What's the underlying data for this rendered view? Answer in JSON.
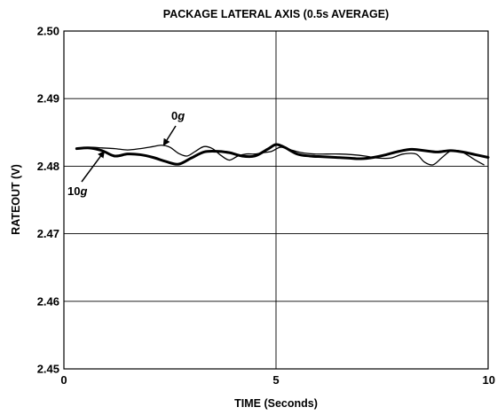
{
  "chart_data": {
    "type": "line",
    "title": "PACKAGE LATERAL AXIS (0.5s AVERAGE)",
    "xlabel": "TIME (Seconds)",
    "ylabel": "RATEOUT (V)",
    "xlim": [
      0,
      10
    ],
    "ylim": [
      2.45,
      2.5
    ],
    "xticks": [
      "0",
      "5",
      "10"
    ],
    "yticks": [
      "2.45",
      "2.46",
      "2.47",
      "2.48",
      "2.49",
      "2.50"
    ],
    "grid": true,
    "series": [
      {
        "name": "0g",
        "x": [
          0.3,
          0.6,
          0.9,
          1.2,
          1.5,
          1.8,
          2.1,
          2.3,
          2.5,
          2.7,
          2.9,
          3.1,
          3.3,
          3.5,
          3.7,
          3.9,
          4.1,
          4.3,
          4.5,
          4.7,
          4.9,
          5.1,
          5.3,
          5.6,
          5.9,
          6.2,
          6.5,
          6.8,
          7.1,
          7.4,
          7.7,
          8.0,
          8.3,
          8.5,
          8.7,
          8.9,
          9.1,
          9.3,
          9.5,
          9.7,
          9.9
        ],
        "values": [
          2.4826,
          2.4828,
          2.4827,
          2.4826,
          2.4824,
          2.4826,
          2.4829,
          2.4831,
          2.4828,
          2.4819,
          2.4815,
          2.4822,
          2.4829,
          2.4826,
          2.4816,
          2.4809,
          2.4815,
          2.4818,
          2.4818,
          2.482,
          2.4822,
          2.4828,
          2.4825,
          2.482,
          2.4818,
          2.4818,
          2.4818,
          2.4817,
          2.4815,
          2.4812,
          2.4812,
          2.4818,
          2.4818,
          2.4806,
          2.4802,
          2.4812,
          2.4822,
          2.4823,
          2.4817,
          2.4809,
          2.4802
        ]
      },
      {
        "name": "10g",
        "x": [
          0.3,
          0.6,
          0.9,
          1.2,
          1.5,
          1.8,
          2.1,
          2.4,
          2.7,
          3.0,
          3.3,
          3.6,
          3.9,
          4.2,
          4.5,
          4.8,
          5.0,
          5.2,
          5.5,
          5.8,
          6.1,
          6.4,
          6.7,
          7.0,
          7.3,
          7.6,
          7.9,
          8.2,
          8.5,
          8.8,
          9.1,
          9.4,
          9.7,
          10.0
        ],
        "values": [
          2.4826,
          2.4827,
          2.4823,
          2.4815,
          2.4818,
          2.4817,
          2.4813,
          2.4807,
          2.4803,
          2.4812,
          2.4821,
          2.4822,
          2.482,
          2.4815,
          2.4815,
          2.4825,
          2.4832,
          2.4828,
          2.4818,
          2.4815,
          2.4814,
          2.4813,
          2.4812,
          2.4811,
          2.4813,
          2.4817,
          2.4822,
          2.4825,
          2.4823,
          2.4821,
          2.4823,
          2.4821,
          2.4817,
          2.4813
        ]
      }
    ],
    "annotations": [
      {
        "label": "0",
        "label_suffix": "g",
        "target_x": 2.35,
        "target_y": 2.4831
      },
      {
        "label": "10",
        "label_suffix": "g",
        "target_x": 0.95,
        "target_y": 2.4822
      }
    ]
  }
}
